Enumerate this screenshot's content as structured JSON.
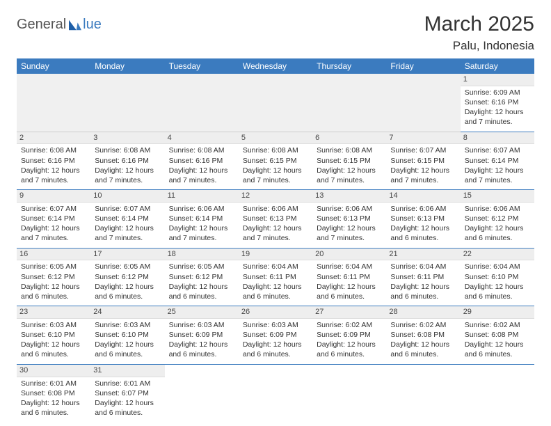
{
  "logo": {
    "text1": "General",
    "text2": "lue"
  },
  "title": "March 2025",
  "location": "Palu, Indonesia",
  "colors": {
    "header_bg": "#3b7bbf",
    "header_fg": "#ffffff",
    "daynum_bg": "#eeeeee",
    "row_divider": "#3b7bbf",
    "empty_bg": "#f0f0f0"
  },
  "daysOfWeek": [
    "Sunday",
    "Monday",
    "Tuesday",
    "Wednesday",
    "Thursday",
    "Friday",
    "Saturday"
  ],
  "weeks": [
    [
      null,
      null,
      null,
      null,
      null,
      null,
      {
        "n": "1",
        "sr": "Sunrise: 6:09 AM",
        "ss": "Sunset: 6:16 PM",
        "d1": "Daylight: 12 hours",
        "d2": "and 7 minutes."
      }
    ],
    [
      {
        "n": "2",
        "sr": "Sunrise: 6:08 AM",
        "ss": "Sunset: 6:16 PM",
        "d1": "Daylight: 12 hours",
        "d2": "and 7 minutes."
      },
      {
        "n": "3",
        "sr": "Sunrise: 6:08 AM",
        "ss": "Sunset: 6:16 PM",
        "d1": "Daylight: 12 hours",
        "d2": "and 7 minutes."
      },
      {
        "n": "4",
        "sr": "Sunrise: 6:08 AM",
        "ss": "Sunset: 6:16 PM",
        "d1": "Daylight: 12 hours",
        "d2": "and 7 minutes."
      },
      {
        "n": "5",
        "sr": "Sunrise: 6:08 AM",
        "ss": "Sunset: 6:15 PM",
        "d1": "Daylight: 12 hours",
        "d2": "and 7 minutes."
      },
      {
        "n": "6",
        "sr": "Sunrise: 6:08 AM",
        "ss": "Sunset: 6:15 PM",
        "d1": "Daylight: 12 hours",
        "d2": "and 7 minutes."
      },
      {
        "n": "7",
        "sr": "Sunrise: 6:07 AM",
        "ss": "Sunset: 6:15 PM",
        "d1": "Daylight: 12 hours",
        "d2": "and 7 minutes."
      },
      {
        "n": "8",
        "sr": "Sunrise: 6:07 AM",
        "ss": "Sunset: 6:14 PM",
        "d1": "Daylight: 12 hours",
        "d2": "and 7 minutes."
      }
    ],
    [
      {
        "n": "9",
        "sr": "Sunrise: 6:07 AM",
        "ss": "Sunset: 6:14 PM",
        "d1": "Daylight: 12 hours",
        "d2": "and 7 minutes."
      },
      {
        "n": "10",
        "sr": "Sunrise: 6:07 AM",
        "ss": "Sunset: 6:14 PM",
        "d1": "Daylight: 12 hours",
        "d2": "and 7 minutes."
      },
      {
        "n": "11",
        "sr": "Sunrise: 6:06 AM",
        "ss": "Sunset: 6:14 PM",
        "d1": "Daylight: 12 hours",
        "d2": "and 7 minutes."
      },
      {
        "n": "12",
        "sr": "Sunrise: 6:06 AM",
        "ss": "Sunset: 6:13 PM",
        "d1": "Daylight: 12 hours",
        "d2": "and 7 minutes."
      },
      {
        "n": "13",
        "sr": "Sunrise: 6:06 AM",
        "ss": "Sunset: 6:13 PM",
        "d1": "Daylight: 12 hours",
        "d2": "and 7 minutes."
      },
      {
        "n": "14",
        "sr": "Sunrise: 6:06 AM",
        "ss": "Sunset: 6:13 PM",
        "d1": "Daylight: 12 hours",
        "d2": "and 6 minutes."
      },
      {
        "n": "15",
        "sr": "Sunrise: 6:06 AM",
        "ss": "Sunset: 6:12 PM",
        "d1": "Daylight: 12 hours",
        "d2": "and 6 minutes."
      }
    ],
    [
      {
        "n": "16",
        "sr": "Sunrise: 6:05 AM",
        "ss": "Sunset: 6:12 PM",
        "d1": "Daylight: 12 hours",
        "d2": "and 6 minutes."
      },
      {
        "n": "17",
        "sr": "Sunrise: 6:05 AM",
        "ss": "Sunset: 6:12 PM",
        "d1": "Daylight: 12 hours",
        "d2": "and 6 minutes."
      },
      {
        "n": "18",
        "sr": "Sunrise: 6:05 AM",
        "ss": "Sunset: 6:12 PM",
        "d1": "Daylight: 12 hours",
        "d2": "and 6 minutes."
      },
      {
        "n": "19",
        "sr": "Sunrise: 6:04 AM",
        "ss": "Sunset: 6:11 PM",
        "d1": "Daylight: 12 hours",
        "d2": "and 6 minutes."
      },
      {
        "n": "20",
        "sr": "Sunrise: 6:04 AM",
        "ss": "Sunset: 6:11 PM",
        "d1": "Daylight: 12 hours",
        "d2": "and 6 minutes."
      },
      {
        "n": "21",
        "sr": "Sunrise: 6:04 AM",
        "ss": "Sunset: 6:11 PM",
        "d1": "Daylight: 12 hours",
        "d2": "and 6 minutes."
      },
      {
        "n": "22",
        "sr": "Sunrise: 6:04 AM",
        "ss": "Sunset: 6:10 PM",
        "d1": "Daylight: 12 hours",
        "d2": "and 6 minutes."
      }
    ],
    [
      {
        "n": "23",
        "sr": "Sunrise: 6:03 AM",
        "ss": "Sunset: 6:10 PM",
        "d1": "Daylight: 12 hours",
        "d2": "and 6 minutes."
      },
      {
        "n": "24",
        "sr": "Sunrise: 6:03 AM",
        "ss": "Sunset: 6:10 PM",
        "d1": "Daylight: 12 hours",
        "d2": "and 6 minutes."
      },
      {
        "n": "25",
        "sr": "Sunrise: 6:03 AM",
        "ss": "Sunset: 6:09 PM",
        "d1": "Daylight: 12 hours",
        "d2": "and 6 minutes."
      },
      {
        "n": "26",
        "sr": "Sunrise: 6:03 AM",
        "ss": "Sunset: 6:09 PM",
        "d1": "Daylight: 12 hours",
        "d2": "and 6 minutes."
      },
      {
        "n": "27",
        "sr": "Sunrise: 6:02 AM",
        "ss": "Sunset: 6:09 PM",
        "d1": "Daylight: 12 hours",
        "d2": "and 6 minutes."
      },
      {
        "n": "28",
        "sr": "Sunrise: 6:02 AM",
        "ss": "Sunset: 6:08 PM",
        "d1": "Daylight: 12 hours",
        "d2": "and 6 minutes."
      },
      {
        "n": "29",
        "sr": "Sunrise: 6:02 AM",
        "ss": "Sunset: 6:08 PM",
        "d1": "Daylight: 12 hours",
        "d2": "and 6 minutes."
      }
    ],
    [
      {
        "n": "30",
        "sr": "Sunrise: 6:01 AM",
        "ss": "Sunset: 6:08 PM",
        "d1": "Daylight: 12 hours",
        "d2": "and 6 minutes."
      },
      {
        "n": "31",
        "sr": "Sunrise: 6:01 AM",
        "ss": "Sunset: 6:07 PM",
        "d1": "Daylight: 12 hours",
        "d2": "and 6 minutes."
      },
      null,
      null,
      null,
      null,
      null
    ]
  ]
}
